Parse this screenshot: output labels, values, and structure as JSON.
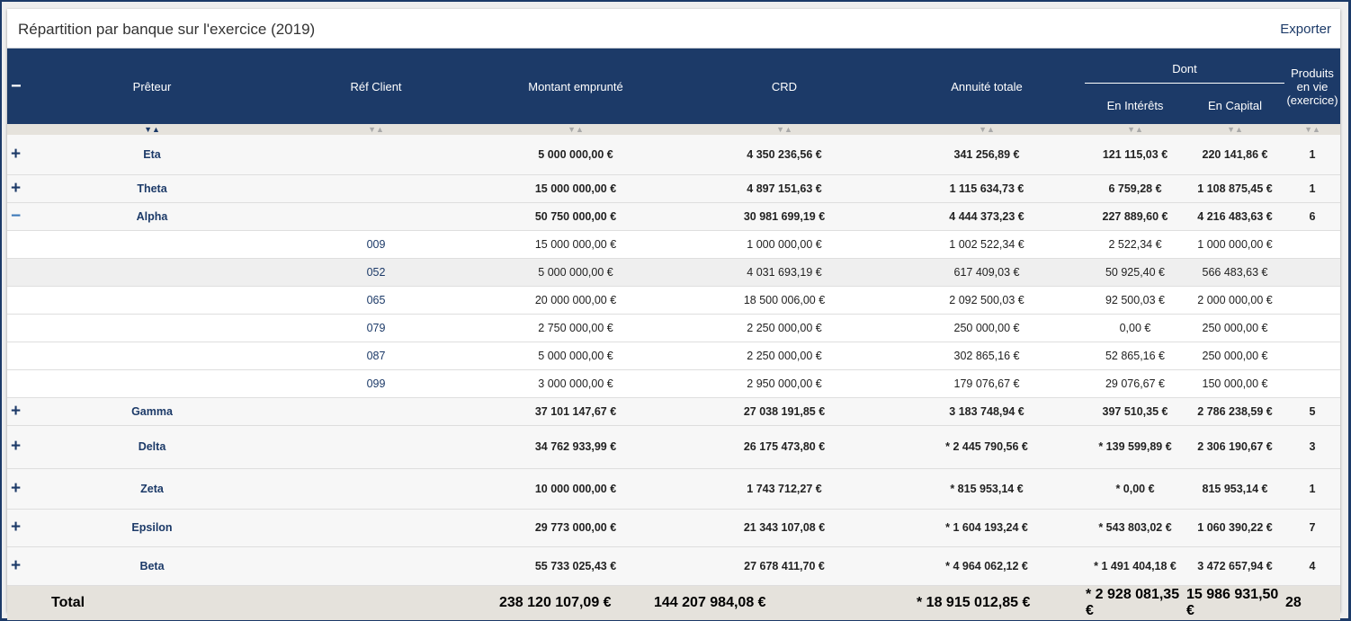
{
  "panel": {
    "title": "Répartition par banque sur l'exercice (2019)",
    "export_label": "Exporter"
  },
  "header": {
    "collapse_all": "−",
    "preteur": "Prêteur",
    "ref_client": "Réf Client",
    "montant": "Montant emprunté",
    "crd": "CRD",
    "annuite": "Annuité totale",
    "dont": "Dont",
    "interets": "En Intérêts",
    "capital": "En Capital",
    "produits": "Produits en vie (exercice)"
  },
  "rows": [
    {
      "type": "group",
      "toggle": "+",
      "name": "Eta",
      "ref": "",
      "montant": "5 000 000,00 €",
      "crd": "4 350 236,56 €",
      "annuite": "341 256,89 €",
      "interets": "121 115,03 €",
      "capital": "220 141,86 €",
      "produits": "1",
      "h": 44
    },
    {
      "type": "group",
      "toggle": "+",
      "name": "Theta",
      "ref": "",
      "montant": "15 000 000,00 €",
      "crd": "4 897 151,63 €",
      "annuite": "1 115 634,73 €",
      "interets": "6 759,28 €",
      "capital": "1 108 875,45 €",
      "produits": "1",
      "h": 31
    },
    {
      "type": "group",
      "toggle": "−",
      "open": true,
      "name": "Alpha",
      "ref": "",
      "montant": "50 750 000,00 €",
      "crd": "30 981 699,19 €",
      "annuite": "4 444 373,23 €",
      "interets": "227 889,60 €",
      "capital": "4 216 483,63 €",
      "produits": "6",
      "h": 31
    },
    {
      "type": "child",
      "name": "",
      "ref": "009",
      "montant": "15 000 000,00 €",
      "crd": "1 000 000,00 €",
      "annuite": "1 002 522,34 €",
      "interets": "2 522,34 €",
      "capital": "1 000 000,00 €",
      "produits": "",
      "h": 31
    },
    {
      "type": "child",
      "alt": true,
      "name": "",
      "ref": "052",
      "montant": "5 000 000,00 €",
      "crd": "4 031 693,19 €",
      "annuite": "617 409,03 €",
      "interets": "50 925,40 €",
      "capital": "566 483,63 €",
      "produits": "",
      "h": 31
    },
    {
      "type": "child",
      "name": "",
      "ref": "065",
      "montant": "20 000 000,00 €",
      "crd": "18 500 006,00 €",
      "annuite": "2 092 500,03 €",
      "interets": "92 500,03 €",
      "capital": "2 000 000,00 €",
      "produits": "",
      "h": 31
    },
    {
      "type": "child",
      "name": "",
      "ref": "079",
      "montant": "2 750 000,00 €",
      "crd": "2 250 000,00 €",
      "annuite": "250 000,00 €",
      "interets": "0,00 €",
      "capital": "250 000,00 €",
      "produits": "",
      "h": 31
    },
    {
      "type": "child",
      "name": "",
      "ref": "087",
      "montant": "5 000 000,00 €",
      "crd": "2 250 000,00 €",
      "annuite": "302 865,16 €",
      "interets": "52 865,16 €",
      "capital": "250 000,00 €",
      "produits": "",
      "h": 31
    },
    {
      "type": "child",
      "name": "",
      "ref": "099",
      "montant": "3 000 000,00 €",
      "crd": "2 950 000,00 €",
      "annuite": "179 076,67 €",
      "interets": "29 076,67 €",
      "capital": "150 000,00 €",
      "produits": "",
      "h": 31
    },
    {
      "type": "group",
      "toggle": "+",
      "name": "Gamma",
      "ref": "",
      "montant": "37 101 147,67 €",
      "crd": "27 038 191,85 €",
      "annuite": "3 183 748,94 €",
      "interets": "397 510,35 €",
      "capital": "2 786 238,59 €",
      "produits": "5",
      "h": 31
    },
    {
      "type": "group",
      "toggle": "+",
      "name": "Delta",
      "ref": "",
      "montant": "34 762 933,99 €",
      "crd": "26 175 473,80 €",
      "annuite": "* 2 445 790,56 €",
      "interets": "* 139 599,89 €",
      "capital": "2 306 190,67 €",
      "produits": "3",
      "h": 48
    },
    {
      "type": "group",
      "toggle": "+",
      "name": "Zeta",
      "ref": "",
      "montant": "10 000 000,00 €",
      "crd": "1 743 712,27 €",
      "annuite": "* 815 953,14 €",
      "interets": "* 0,00 €",
      "capital": "815 953,14 €",
      "produits": "1",
      "h": 45
    },
    {
      "type": "group",
      "toggle": "+",
      "name": "Epsilon",
      "ref": "",
      "montant": "29 773 000,00 €",
      "crd": "21 343 107,08 €",
      "annuite": "* 1 604 193,24 €",
      "interets": "* 543 803,02 €",
      "capital": "1 060 390,22 €",
      "produits": "7",
      "h": 42
    },
    {
      "type": "group",
      "toggle": "+",
      "name": "Beta",
      "ref": "",
      "montant": "55 733 025,43 €",
      "crd": "27 678 411,70 €",
      "annuite": "* 4 964 062,12 €",
      "interets": "* 1 491 404,18 €",
      "capital": "3 472 657,94 €",
      "produits": "4",
      "h": 43
    }
  ],
  "total": {
    "label": "Total",
    "montant": "238 120 107,09 €",
    "crd": "144 207 984,08 €",
    "annuite": "* 18 915 012,85 €",
    "interets": "* 2 928 081,35 €",
    "capital": "15 986 931,50 €",
    "produits": "28"
  },
  "sort_icon": "▼▲"
}
